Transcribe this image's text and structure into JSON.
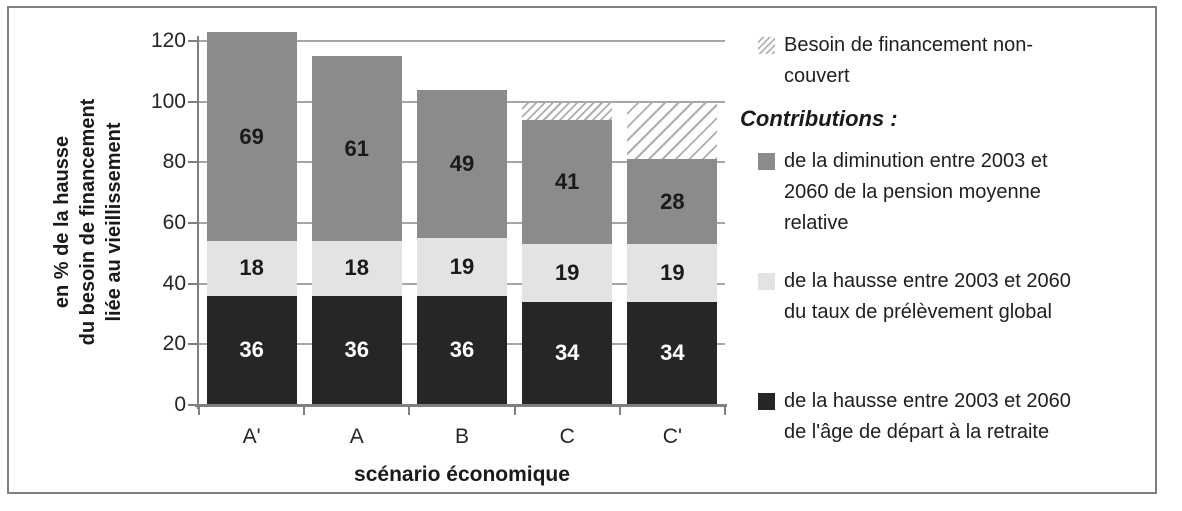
{
  "chart_data": {
    "type": "bar",
    "stacked": true,
    "categories": [
      "A'",
      "A",
      "B",
      "C",
      "C'"
    ],
    "series": [
      {
        "name": "de la hausse entre 2003 et 2060 de l'âge de départ à la retraite",
        "color": "#262626",
        "label_color": "#ffffff",
        "values": [
          36,
          36,
          36,
          34,
          34
        ]
      },
      {
        "name": "de la hausse entre 2003 et 2060 du taux de prélèvement global",
        "color": "#e3e3e2",
        "label_color": "#1a1a1a",
        "values": [
          18,
          18,
          19,
          19,
          19
        ]
      },
      {
        "name": "de la diminution entre 2003 et 2060 de la pension moyenne relative",
        "color": "#8b8b8b",
        "label_color": "#1a1a1a",
        "values": [
          69,
          61,
          49,
          41,
          28
        ]
      }
    ],
    "totals": [
      123,
      115,
      104,
      94,
      81
    ],
    "uncovered": {
      "name": "Besoin de financement non-couvert",
      "fill_to": 100,
      "categories": [
        "C",
        "C'"
      ],
      "implied_values": {
        "C": 6,
        "C'": 19
      }
    },
    "ylabel_lines": [
      "en % de la hausse",
      "du besoin de financement",
      "liée au vieillissement"
    ],
    "xlabel": "scénario économique",
    "yticks": [
      0,
      20,
      40,
      60,
      80,
      100,
      120
    ],
    "ylim": [
      0,
      120
    ],
    "grid": true,
    "legend_position": "right"
  },
  "legend": {
    "uncovered_label": "Besoin de financement non-couvert",
    "section_title": "Contributions :",
    "items": [
      {
        "color": "#8b8b8b",
        "label": "de la diminution entre 2003 et 2060 de la pension moyenne relative"
      },
      {
        "color": "#e3e3e2",
        "label": "de la hausse entre 2003 et 2060 du taux de prélèvement global"
      },
      {
        "color": "#262626",
        "label": "de la hausse entre 2003 et 2060 de l'âge de départ à la retraite"
      }
    ]
  },
  "colors": {
    "border": "#7f7f7f",
    "axis": "#7f7f7f",
    "gridline": "#a6a6a6",
    "hatch_line": "#adadad",
    "text": "#1a1a1a"
  }
}
